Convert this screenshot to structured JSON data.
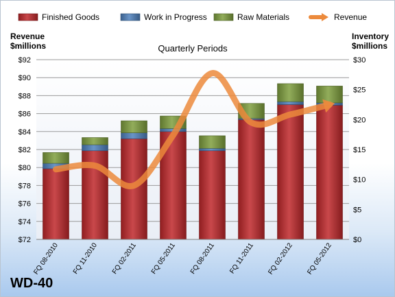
{
  "chart_data": {
    "type": "bar",
    "title": "Quarterly Periods",
    "company": "WD-40",
    "ylabel_left": [
      "Revenue",
      "$millions"
    ],
    "ylabel_right": [
      "Inventory",
      "$millions"
    ],
    "ylim_left": [
      72,
      92
    ],
    "ylim_right": [
      0,
      30
    ],
    "left_ticks": [
      "$72",
      "$74",
      "$76",
      "$78",
      "$80",
      "$82",
      "$84",
      "$86",
      "$88",
      "$90",
      "$92"
    ],
    "right_ticks": [
      "$0",
      "$5",
      "$10",
      "$15",
      "$20",
      "$25",
      "$30"
    ],
    "grid": true,
    "legend_position": "top",
    "categories": [
      "FQ 08-2010",
      "FQ 11-2010",
      "FQ 02-2011",
      "FQ 05-2011",
      "FQ 08-2011",
      "FQ 11-2011",
      "FQ 02-2012",
      "FQ 05-2012"
    ],
    "series": [
      {
        "name": "Finished Goods",
        "axis": "right",
        "stack": true,
        "color": "#c0282b",
        "values": [
          11.8,
          14.8,
          16.8,
          18.0,
          14.8,
          20.0,
          22.5,
          22.4
        ]
      },
      {
        "name": "Work in Progress",
        "axis": "right",
        "stack": true,
        "color": "#4f81bd",
        "values": [
          0.9,
          1.0,
          1.0,
          0.5,
          0.4,
          0.2,
          0.5,
          0.4
        ]
      },
      {
        "name": "Raw Materials",
        "axis": "right",
        "stack": true,
        "color": "#7f9e3e",
        "values": [
          1.8,
          1.2,
          2.0,
          2.1,
          2.1,
          2.5,
          3.0,
          2.8
        ]
      },
      {
        "name": "Revenue",
        "axis": "left",
        "type": "line",
        "color": "#ec8a3c",
        "values": [
          79.8,
          80.2,
          78.0,
          83.6,
          90.5,
          85.0,
          85.9,
          87.0
        ]
      }
    ]
  }
}
